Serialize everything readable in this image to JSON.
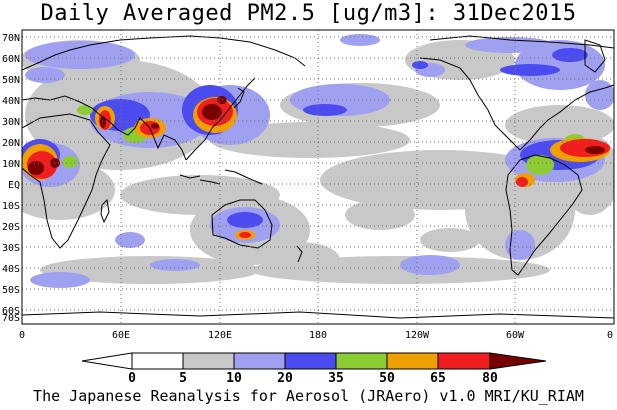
{
  "title": "Daily Averaged PM2.5 [ug/m3]: 31Dec2015",
  "footer": "The Japanese Reanalysis for Aerosol (JRAero) v1.0 MRI/KU_RIAM",
  "map": {
    "lat_labels": [
      "70N",
      "60N",
      "50N",
      "40N",
      "30N",
      "20N",
      "10N",
      "EQ",
      "10S",
      "20S",
      "30S",
      "40S",
      "50S",
      "60S",
      "70S"
    ],
    "lon_labels": [
      "0",
      "60E",
      "120E",
      "180",
      "120W",
      "60W",
      "0"
    ],
    "grid": "dotted",
    "projection": "equirectangular"
  },
  "colorbar": {
    "thresholds": [
      "0",
      "5",
      "10",
      "20",
      "35",
      "50",
      "65",
      "80"
    ],
    "colors": [
      "#ffffff",
      "#c8c8c8",
      "#a0a0f0",
      "#4b4bf0",
      "#8ccc32",
      "#f0a000",
      "#f01e1e",
      "#780000"
    ],
    "extend": "both"
  },
  "chart_data": {
    "type": "heatmap",
    "title": "Daily Averaged PM2.5 [ug/m3]: 31Dec2015",
    "variable": "PM2.5",
    "units": "ug/m3",
    "date": "31Dec2015",
    "x_ticks": [
      "0",
      "60E",
      "120E",
      "180",
      "120W",
      "60W",
      "0"
    ],
    "y_ticks": [
      "70N",
      "60N",
      "50N",
      "40N",
      "30N",
      "20N",
      "10N",
      "EQ",
      "10S",
      "20S",
      "30S",
      "40S",
      "50S",
      "60S",
      "70S"
    ],
    "color_levels": [
      0,
      5,
      10,
      20,
      35,
      50,
      65,
      80
    ]
  }
}
